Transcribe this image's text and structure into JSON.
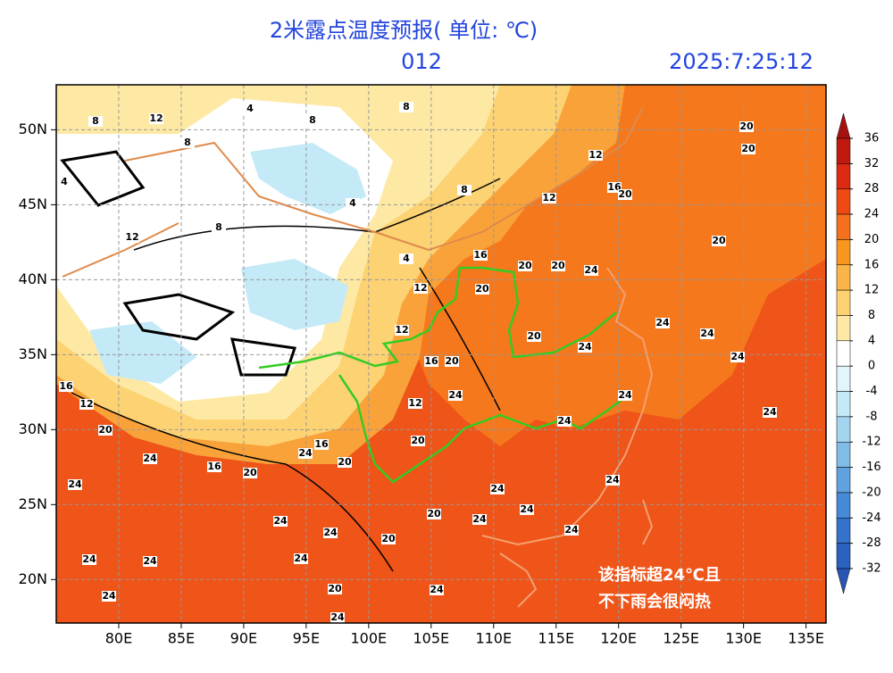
{
  "header": {
    "title": "2米露点温度预报( 单位: ℃)",
    "lead": "012",
    "time": "2025:7:25:12"
  },
  "map": {
    "xlim": [
      75,
      136.6
    ],
    "ylim": [
      17.1,
      53
    ],
    "xticks": [
      {
        "value": 80,
        "label": "80E"
      },
      {
        "value": 85,
        "label": "85E"
      },
      {
        "value": 90,
        "label": "90E"
      },
      {
        "value": 95,
        "label": "95E"
      },
      {
        "value": 100,
        "label": "100E"
      },
      {
        "value": 105,
        "label": "105E"
      },
      {
        "value": 110,
        "label": "110E"
      },
      {
        "value": 115,
        "label": "115E"
      },
      {
        "value": 120,
        "label": "120E"
      },
      {
        "value": 125,
        "label": "125E"
      },
      {
        "value": 130,
        "label": "130E"
      },
      {
        "value": 135,
        "label": "135E"
      }
    ],
    "yticks": [
      {
        "value": 50,
        "label": "50N"
      },
      {
        "value": 45,
        "label": "45N"
      },
      {
        "value": 40,
        "label": "40N"
      },
      {
        "value": 35,
        "label": "35N"
      },
      {
        "value": 30,
        "label": "30N"
      },
      {
        "value": 25,
        "label": "25N"
      },
      {
        "value": 20,
        "label": "20N"
      }
    ],
    "grid": true
  },
  "colorbar": {
    "levels": [
      36,
      32,
      28,
      24,
      20,
      16,
      12,
      8,
      4,
      0,
      -4,
      -8,
      -12,
      -16,
      -20,
      -24,
      -28,
      -32
    ],
    "colors": [
      "#a5120f",
      "#c01a10",
      "#dc2b12",
      "#ef4a16",
      "#f5701c",
      "#f99620",
      "#fbb447",
      "#fcd273",
      "#fde9a4",
      "#ffffff",
      "#e2f5fb",
      "#c4e9f7",
      "#a3d5f0",
      "#7fbde8",
      "#5ea3df",
      "#4689d6",
      "#3473cb",
      "#2a62c0",
      "#2a55b5"
    ]
  },
  "contour_labels": [
    8,
    12,
    8,
    4,
    8,
    8,
    4,
    12,
    8,
    4,
    4,
    8,
    12,
    12,
    16,
    20,
    20,
    20,
    20,
    16,
    20,
    20,
    24,
    12,
    20,
    12,
    16,
    20,
    20,
    24,
    24,
    24,
    24,
    24,
    12,
    24,
    24,
    24,
    16,
    12,
    20,
    24,
    16,
    20,
    24,
    16,
    20,
    20,
    24,
    24,
    24,
    24,
    24,
    20,
    24,
    24,
    20,
    24,
    24,
    24,
    24,
    24,
    20,
    24,
    24
  ],
  "annotation": [
    "该指标超24℃且",
    "不下雨会很闷热"
  ]
}
